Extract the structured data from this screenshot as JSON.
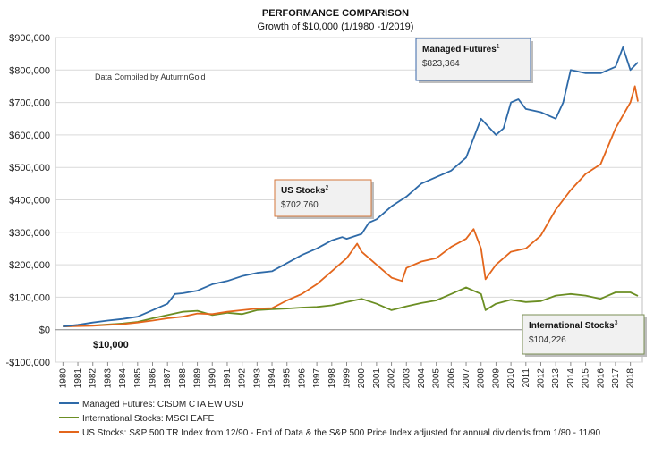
{
  "chart_data": {
    "type": "line",
    "title": "PERFORMANCE COMPARISON",
    "subtitle": "Growth of $10,000 (1/1980 -1/2019)",
    "ylim": [
      -100000,
      900000
    ],
    "yticks": [
      -100000,
      0,
      100000,
      200000,
      300000,
      400000,
      500000,
      600000,
      700000,
      800000,
      900000
    ],
    "ytick_labels": [
      "-$100,000",
      "$0",
      "$100,000",
      "$200,000",
      "$300,000",
      "$400,000",
      "$500,000",
      "$600,000",
      "$700,000",
      "$800,000",
      "$900,000"
    ],
    "xlim": [
      1979.5,
      2018.8
    ],
    "xticks": [
      1980,
      1981,
      1982,
      1983,
      1984,
      1985,
      1986,
      1987,
      1988,
      1989,
      1990,
      1991,
      1992,
      1993,
      1994,
      1995,
      1996,
      1997,
      1998,
      1999,
      2000,
      2001,
      2002,
      2003,
      2004,
      2005,
      2006,
      2007,
      2008,
      2009,
      2010,
      2011,
      2012,
      2013,
      2014,
      2015,
      2016,
      2017,
      2018
    ],
    "grid": true,
    "legend_position": "bottom",
    "note": "Data Compiled by AutumnGold",
    "start_label": "$10,000",
    "series": [
      {
        "name": "Managed Futures: CISDM CTA EW USD",
        "color": "#2e6aa8",
        "x": [
          1980,
          1981,
          1982,
          1983,
          1984,
          1985,
          1986,
          1987,
          1987.5,
          1988,
          1989,
          1990,
          1991,
          1992,
          1993,
          1994,
          1995,
          1996,
          1997,
          1998,
          1998.7,
          1999,
          2000,
          2000.5,
          2001,
          2002,
          2003,
          2004,
          2005,
          2006,
          2007,
          2008,
          2009,
          2009.5,
          2010,
          2010.5,
          2011,
          2012,
          2013,
          2013.5,
          2014,
          2015,
          2016,
          2017,
          2017.5,
          2018,
          2018.5
        ],
        "y": [
          10000,
          15000,
          22000,
          28000,
          33000,
          40000,
          60000,
          80000,
          110000,
          112000,
          120000,
          140000,
          150000,
          165000,
          175000,
          180000,
          205000,
          230000,
          250000,
          275000,
          285000,
          280000,
          295000,
          330000,
          340000,
          380000,
          410000,
          450000,
          470000,
          490000,
          530000,
          650000,
          600000,
          620000,
          700000,
          710000,
          680000,
          670000,
          650000,
          700000,
          800000,
          790000,
          790000,
          810000,
          870000,
          800000,
          823364
        ]
      },
      {
        "name": "International Stocks: MSCI EAFE",
        "color": "#6b8e23",
        "x": [
          1980,
          1981,
          1982,
          1983,
          1984,
          1985,
          1986,
          1987,
          1988,
          1989,
          1990,
          1991,
          1992,
          1993,
          1994,
          1995,
          1996,
          1997,
          1998,
          1999,
          2000,
          2001,
          2002,
          2003,
          2004,
          2005,
          2006,
          2007,
          2008,
          2008.3,
          2009,
          2010,
          2011,
          2012,
          2013,
          2014,
          2015,
          2016,
          2017,
          2018,
          2018.5
        ],
        "y": [
          10000,
          12000,
          13000,
          16000,
          19000,
          24000,
          35000,
          45000,
          55000,
          58000,
          45000,
          52000,
          48000,
          60000,
          63000,
          65000,
          68000,
          70000,
          75000,
          85000,
          95000,
          80000,
          60000,
          72000,
          82000,
          90000,
          110000,
          130000,
          110000,
          60000,
          80000,
          92000,
          85000,
          88000,
          105000,
          110000,
          105000,
          95000,
          115000,
          115000,
          104226
        ]
      },
      {
        "name": "US Stocks: S&P 500 TR Index from 12/90 - End of Data & the S&P 500 Price Index adjusted for annual dividends from 1/80 - 11/90",
        "color": "#e3661c",
        "x": [
          1980,
          1981,
          1982,
          1983,
          1984,
          1985,
          1986,
          1987,
          1988,
          1989,
          1990,
          1991,
          1992,
          1993,
          1994,
          1995,
          1996,
          1997,
          1998,
          1999,
          1999.7,
          2000,
          2001,
          2002,
          2002.7,
          2003,
          2004,
          2005,
          2006,
          2007,
          2007.5,
          2008,
          2008.3,
          2009,
          2010,
          2011,
          2012,
          2013,
          2014,
          2015,
          2016,
          2017,
          2018,
          2018.3,
          2018.5
        ],
        "y": [
          10000,
          11000,
          12000,
          15000,
          17000,
          22000,
          28000,
          35000,
          40000,
          50000,
          48000,
          55000,
          60000,
          65000,
          66000,
          90000,
          110000,
          140000,
          180000,
          220000,
          265000,
          240000,
          200000,
          160000,
          150000,
          190000,
          210000,
          220000,
          255000,
          280000,
          310000,
          250000,
          155000,
          200000,
          240000,
          250000,
          290000,
          370000,
          430000,
          480000,
          510000,
          620000,
          700000,
          750000,
          702760
        ]
      }
    ],
    "callouts": [
      {
        "title": "Managed Futures",
        "superscript": "1",
        "value": "$823,364"
      },
      {
        "title": "US Stocks",
        "superscript": "2",
        "value": "$702,760"
      },
      {
        "title": "International Stocks",
        "superscript": "3",
        "value": "$104,226"
      }
    ]
  }
}
